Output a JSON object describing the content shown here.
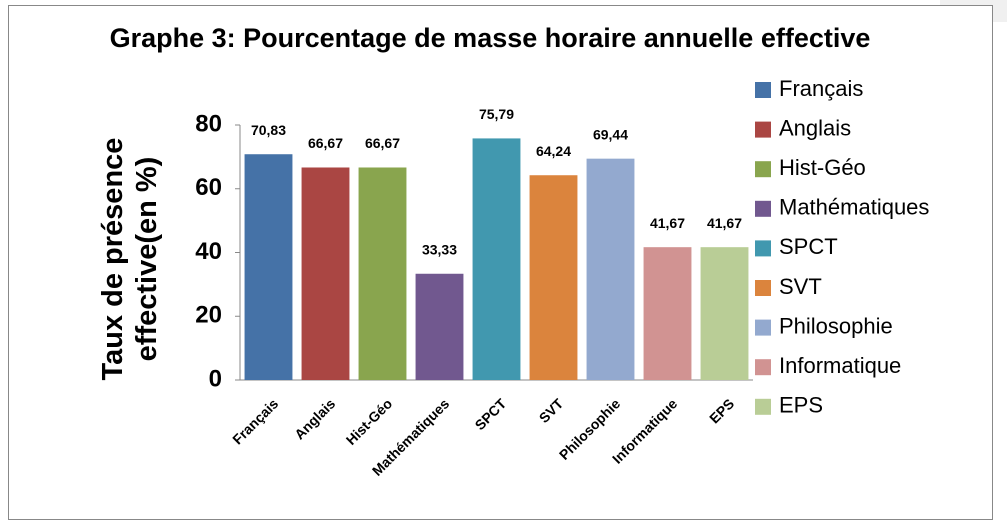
{
  "chart_data": {
    "type": "bar",
    "title": "Graphe 3: Pourcentage de masse horaire annuelle effective",
    "y_label": "Taux de présence effective(en %)",
    "categories": [
      "Français",
      "Anglais",
      "Hist-Géo",
      "Mathématiques",
      "SPCT",
      "SVT",
      "Philosophie",
      "Informatique",
      "EPS"
    ],
    "values": [
      70.83,
      66.67,
      66.67,
      33.33,
      75.79,
      64.24,
      69.44,
      41.67,
      41.67
    ],
    "value_labels": [
      "70,83",
      "66,67",
      "66,67",
      "33,33",
      "75,79",
      "64,24",
      "69,44",
      "41,67",
      "41,67"
    ],
    "colors": [
      "#4572a7",
      "#aa4643",
      "#89a54e",
      "#71588f",
      "#4198af",
      "#db843d",
      "#93a9cf",
      "#d19392",
      "#b9cd96"
    ],
    "ylim": [
      0,
      80
    ],
    "yticks": [
      0,
      20,
      40,
      60,
      80
    ],
    "legend": "right"
  }
}
